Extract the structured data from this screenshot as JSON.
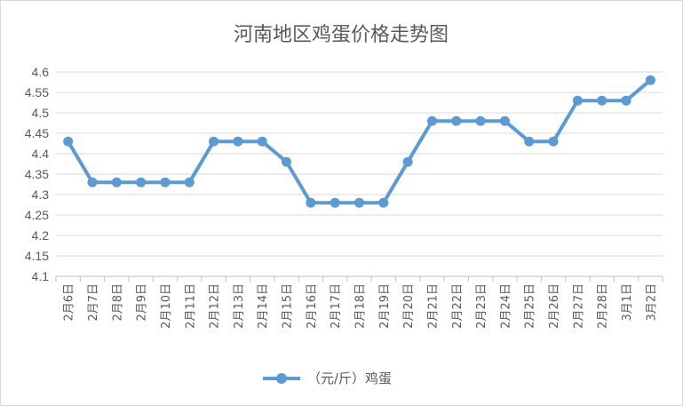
{
  "chart_data": {
    "type": "line",
    "title": "河南地区鸡蛋价格走势图",
    "categories": [
      "2月6日",
      "2月7日",
      "2月8日",
      "2月9日",
      "2月10日",
      "2月11日",
      "2月12日",
      "2月13日",
      "2月14日",
      "2月15日",
      "2月16日",
      "2月17日",
      "2月18日",
      "2月19日",
      "2月20日",
      "2月21日",
      "2月22日",
      "2月23日",
      "2月24日",
      "2月25日",
      "2月26日",
      "2月27日",
      "2月28日",
      "3月1日",
      "3月2日"
    ],
    "series": [
      {
        "name": "（元/斤）鸡蛋",
        "values": [
          4.43,
          4.33,
          4.33,
          4.33,
          4.33,
          4.33,
          4.43,
          4.43,
          4.43,
          4.38,
          4.28,
          4.28,
          4.28,
          4.28,
          4.38,
          4.48,
          4.48,
          4.48,
          4.48,
          4.43,
          4.43,
          4.53,
          4.53,
          4.53,
          4.58
        ],
        "color": "#5b9bd5"
      }
    ],
    "ylim": [
      4.1,
      4.6
    ],
    "yticks": [
      "4.1",
      "4.15",
      "4.2",
      "4.25",
      "4.3",
      "4.35",
      "4.4",
      "4.45",
      "4.5",
      "4.55",
      "4.6"
    ],
    "grid": true,
    "legend": "bottom"
  }
}
